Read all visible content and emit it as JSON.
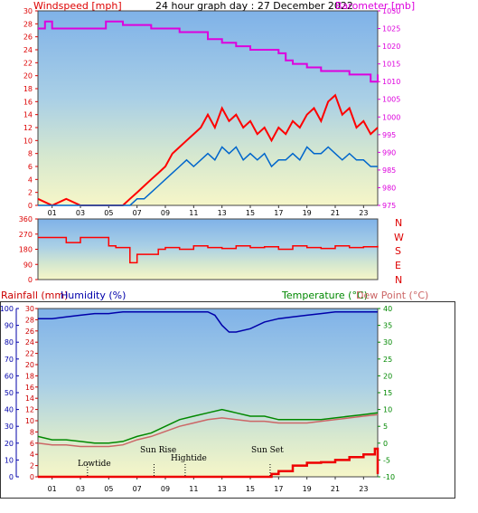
{
  "header": {
    "windspeed_label": "Windspeed [mph]",
    "title": "24 hour graph day : 27 December 2022",
    "barometer_label": "Barometer [mb]"
  },
  "middle": {
    "dir_labels": [
      "N",
      "W",
      "S",
      "E",
      "N"
    ]
  },
  "bottom_header": {
    "rainfall_label": "Rainfall (mm)",
    "humidity_label": "Humidity (%)",
    "temperature_label": "Temperature (°C)",
    "dewpoint_label": "Dew Point (°C)"
  },
  "annotations": {
    "lowtide": "Lowtide",
    "sunrise": "Sun Rise",
    "hightide": "Hightide",
    "sunset": "Sun Set"
  },
  "colors": {
    "wind": "#ff0000",
    "gust": "#0066cc",
    "barometer": "#dd00dd",
    "direction": "#ff0000",
    "humidity": "#0000aa",
    "temperature": "#008800",
    "dewpoint": "#cc6666",
    "rain": "#ee0000"
  },
  "chart_data": [
    {
      "type": "line",
      "title": "24 hour graph day : 27 December 2022",
      "xlabel": "",
      "x_ticks": [
        "01",
        "03",
        "05",
        "07",
        "09",
        "11",
        "13",
        "15",
        "17",
        "19",
        "21",
        "23"
      ],
      "x_range": [
        0,
        24
      ],
      "left_axis": {
        "label": "Windspeed [mph]",
        "ylim": [
          0,
          30
        ],
        "ticks": [
          0,
          2,
          4,
          6,
          8,
          10,
          12,
          14,
          16,
          18,
          20,
          22,
          24,
          26,
          28,
          30
        ]
      },
      "right_axis": {
        "label": "Barometer [mb]",
        "ylim": [
          975,
          1030
        ],
        "ticks": [
          975,
          980,
          985,
          990,
          995,
          1000,
          1005,
          1010,
          1015,
          1020,
          1025,
          1030
        ]
      },
      "series": [
        {
          "axis": "left",
          "x": [
            0,
            1,
            2,
            3,
            4,
            5,
            6,
            6.5,
            7,
            7.5,
            8,
            8.5,
            9,
            9.5,
            10,
            10.5,
            11,
            11.5,
            12,
            12.5,
            13,
            13.5,
            14,
            14.5,
            15,
            15.5,
            16,
            16.5,
            17,
            17.5,
            18,
            18.5,
            19,
            19.5,
            20,
            20.5,
            21,
            21.5,
            22,
            22.5,
            23,
            23.5,
            24
          ],
          "values": [
            1,
            0,
            1,
            0,
            0,
            0,
            0,
            1,
            2,
            3,
            4,
            5,
            6,
            8,
            9,
            10,
            11,
            12,
            14,
            12,
            15,
            13,
            14,
            12,
            13,
            11,
            12,
            10,
            12,
            11,
            13,
            12,
            14,
            15,
            13,
            16,
            17,
            14,
            15,
            12,
            13,
            11,
            12
          ]
        },
        {
          "axis": "left",
          "x": [
            0,
            1,
            2,
            3,
            4,
            5,
            6,
            6.5,
            7,
            7.5,
            8,
            8.5,
            9,
            9.5,
            10,
            10.5,
            11,
            11.5,
            12,
            12.5,
            13,
            13.5,
            14,
            14.5,
            15,
            15.5,
            16,
            16.5,
            17,
            17.5,
            18,
            18.5,
            19,
            19.5,
            20,
            20.5,
            21,
            21.5,
            22,
            22.5,
            23,
            23.5,
            24
          ],
          "values": [
            0,
            0,
            0,
            0,
            0,
            0,
            0,
            0,
            1,
            1,
            2,
            3,
            4,
            5,
            6,
            7,
            6,
            7,
            8,
            7,
            9,
            8,
            9,
            7,
            8,
            7,
            8,
            6,
            7,
            7,
            8,
            7,
            9,
            8,
            8,
            9,
            8,
            7,
            8,
            7,
            7,
            6,
            6
          ]
        },
        {
          "axis": "right",
          "x": [
            0,
            0.5,
            1,
            2,
            3,
            4,
            4.8,
            5.5,
            6,
            7,
            8,
            9,
            10,
            11,
            12,
            13,
            14,
            15,
            16,
            17,
            17.5,
            18,
            19,
            20,
            21,
            22,
            23,
            23.5,
            24
          ],
          "values": [
            1025,
            1027,
            1025,
            1025,
            1025,
            1025,
            1027,
            1027,
            1026,
            1026,
            1025,
            1025,
            1024,
            1024,
            1022,
            1021,
            1020,
            1019,
            1019,
            1018,
            1016,
            1015,
            1014,
            1013,
            1013,
            1012,
            1012,
            1010,
            1012
          ]
        }
      ]
    },
    {
      "type": "line",
      "ylim": [
        0,
        360
      ],
      "y_ticks": [
        0,
        90,
        180,
        270,
        360
      ],
      "x_range": [
        0,
        24
      ],
      "series": [
        {
          "x": [
            0,
            1.5,
            2,
            3,
            4,
            5,
            5.5,
            6,
            6.5,
            7,
            8,
            8.5,
            9,
            10,
            11,
            12,
            13,
            14,
            15,
            16,
            17,
            18,
            19,
            20,
            21,
            22,
            23,
            24
          ],
          "values": [
            250,
            250,
            220,
            250,
            250,
            200,
            190,
            190,
            100,
            150,
            150,
            180,
            190,
            180,
            200,
            190,
            185,
            200,
            190,
            195,
            180,
            200,
            190,
            185,
            200,
            190,
            195,
            200
          ]
        }
      ]
    },
    {
      "type": "line",
      "x_ticks": [
        "01",
        "03",
        "05",
        "07",
        "09",
        "11",
        "13",
        "15",
        "17",
        "19",
        "21",
        "23"
      ],
      "x_range": [
        0,
        24
      ],
      "rain_axis": {
        "label": "Rainfall (mm)",
        "ylim": [
          0,
          30
        ],
        "ticks": [
          0,
          2,
          4,
          6,
          8,
          10,
          12,
          14,
          16,
          18,
          20,
          22,
          24,
          26,
          28,
          30
        ]
      },
      "humidity_axis": {
        "label": "Humidity (%)",
        "ylim": [
          0,
          100
        ],
        "ticks": [
          0,
          10,
          20,
          30,
          40,
          50,
          60,
          70,
          80,
          90,
          100
        ]
      },
      "temp_axis": {
        "label": "Temperature (°C)",
        "ylim": [
          -10,
          40
        ],
        "ticks": [
          -10,
          -5,
          0,
          5,
          10,
          15,
          20,
          25,
          30,
          35,
          40
        ]
      },
      "series": [
        {
          "axis": "humidity",
          "x": [
            0,
            1,
            2,
            3,
            4,
            5,
            6,
            7,
            8,
            9,
            10,
            11,
            12,
            12.5,
            13,
            13.5,
            14,
            15,
            16,
            17,
            18,
            19,
            20,
            21,
            22,
            23,
            24
          ],
          "values": [
            94,
            94,
            95,
            96,
            97,
            97,
            98,
            98,
            98,
            98,
            98,
            98,
            98,
            96,
            90,
            86,
            86,
            88,
            92,
            94,
            95,
            96,
            97,
            98,
            98,
            98,
            98
          ]
        },
        {
          "axis": "temp",
          "x": [
            0,
            1,
            2,
            3,
            4,
            5,
            6,
            7,
            8,
            9,
            10,
            11,
            12,
            13,
            14,
            15,
            16,
            17,
            18,
            19,
            20,
            21,
            22,
            23,
            24
          ],
          "values": [
            2,
            1,
            1,
            0.5,
            0,
            0,
            0.5,
            2,
            3,
            5,
            7,
            8,
            9,
            10,
            9,
            8,
            8,
            7,
            7,
            7,
            7,
            7.5,
            8,
            8.5,
            9
          ]
        },
        {
          "axis": "temp",
          "x": [
            0,
            1,
            2,
            3,
            4,
            5,
            6,
            7,
            8,
            9,
            10,
            11,
            12,
            13,
            14,
            15,
            16,
            17,
            18,
            19,
            20,
            21,
            22,
            23,
            24
          ],
          "values": [
            0,
            -0.5,
            -0.5,
            -1,
            -1,
            -1,
            -0.5,
            1,
            2,
            3.5,
            5,
            6,
            7,
            7.5,
            7,
            6.5,
            6.5,
            6,
            6,
            6,
            6.5,
            7,
            7.5,
            8,
            8.5
          ]
        },
        {
          "axis": "rain",
          "x": [
            0,
            1,
            2,
            3,
            4,
            5,
            6,
            7,
            8,
            9,
            10,
            11,
            12,
            13,
            14,
            15,
            16,
            16.5,
            17,
            18,
            19,
            20,
            21,
            22,
            23,
            23.8,
            24
          ],
          "values": [
            0,
            0,
            0,
            0,
            0,
            0,
            0,
            0,
            0,
            0,
            0,
            0,
            0,
            0,
            0,
            0,
            0,
            0.5,
            1,
            2,
            2.5,
            2.6,
            3,
            3.5,
            4,
            5,
            0.5
          ]
        }
      ],
      "annotations": [
        {
          "label": "Lowtide",
          "x": 3.5
        },
        {
          "label": "Sun Rise",
          "x": 8.2
        },
        {
          "label": "Hightide",
          "x": 10.4
        },
        {
          "label": "Sun Set",
          "x": 16.4
        }
      ]
    }
  ]
}
